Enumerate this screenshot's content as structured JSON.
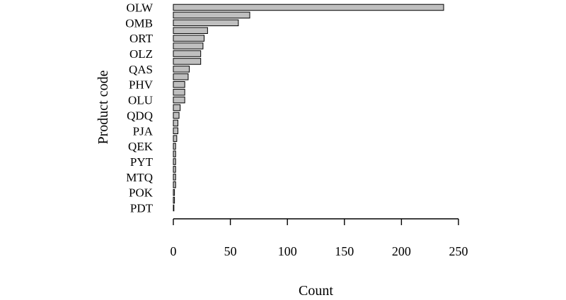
{
  "chart_data": {
    "type": "bar",
    "orientation": "horizontal",
    "xlabel": "Count",
    "ylabel": "Product code",
    "xlim": [
      0,
      250
    ],
    "xticks": [
      0,
      50,
      100,
      150,
      200,
      250
    ],
    "grid": false,
    "bar_color": "#bfbfbf",
    "categories": [
      "OLW",
      "",
      "OMB",
      "",
      "ORT",
      "",
      "OLZ",
      "",
      "QAS",
      "",
      "PHV",
      "",
      "OLU",
      "",
      "QDQ",
      "",
      "PJA",
      "",
      "QEK",
      "",
      "PYT",
      "",
      "MTQ",
      "",
      "POK",
      "",
      "PDT"
    ],
    "values": [
      237,
      67,
      57,
      30,
      27,
      26,
      24,
      24,
      14,
      13,
      10,
      10,
      10,
      6,
      5,
      4,
      4,
      3,
      2,
      2,
      2,
      2,
      2,
      2,
      1,
      1,
      0.5
    ]
  }
}
